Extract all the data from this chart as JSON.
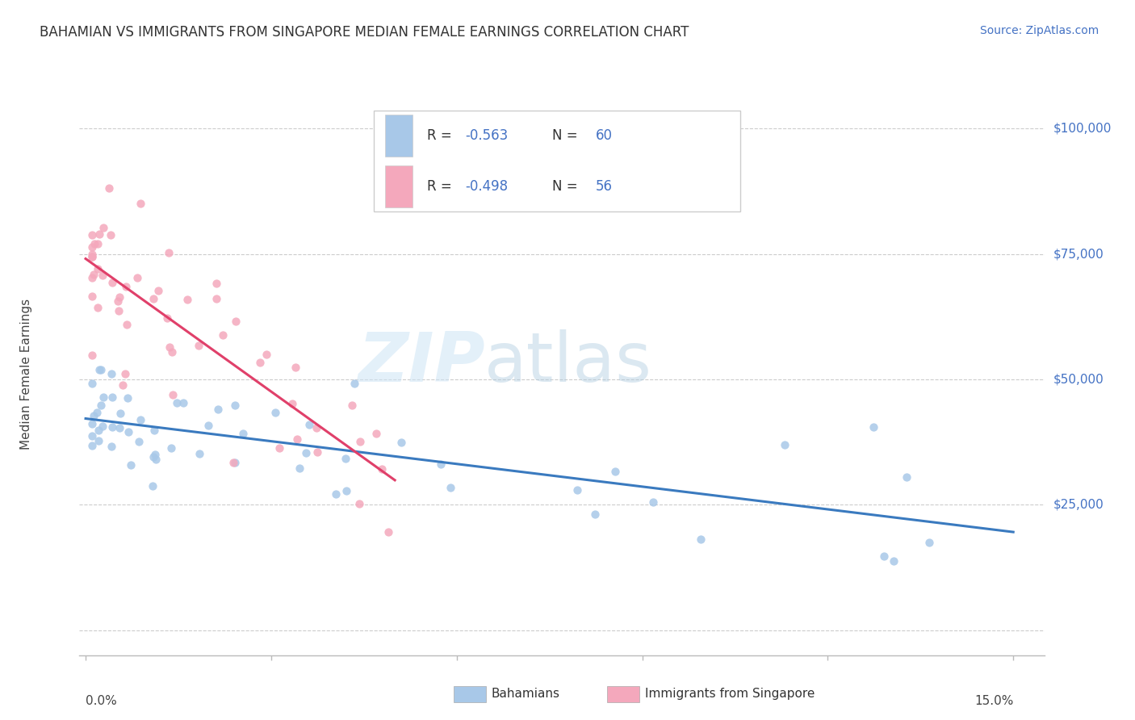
{
  "title": "BAHAMIAN VS IMMIGRANTS FROM SINGAPORE MEDIAN FEMALE EARNINGS CORRELATION CHART",
  "source": "Source: ZipAtlas.com",
  "ylabel": "Median Female Earnings",
  "color_blue": "#a8c8e8",
  "color_pink": "#f4a8bc",
  "line_color_blue": "#3a7abf",
  "line_color_pink": "#e0406a",
  "watermark_zip": "ZIP",
  "watermark_atlas": "atlas",
  "legend_label1": "Bahamians",
  "legend_label2": "Immigrants from Singapore",
  "ytick_vals": [
    0,
    25000,
    50000,
    75000,
    100000
  ],
  "ytick_labels": [
    "",
    "$25,000",
    "$50,000",
    "$75,000",
    "$100,000"
  ],
  "xlim": [
    -0.001,
    0.155
  ],
  "ylim": [
    -5000,
    107000
  ],
  "bah_seed": 42,
  "sin_seed": 99
}
